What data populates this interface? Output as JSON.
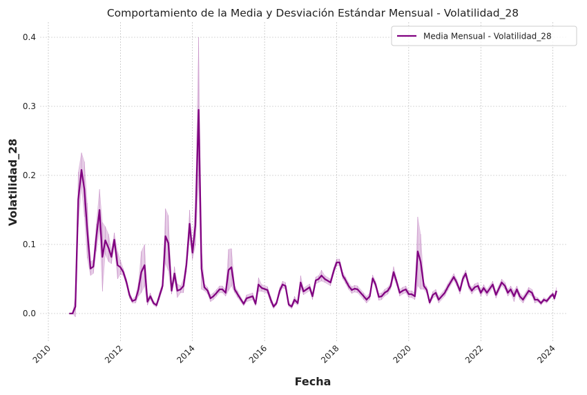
{
  "chart_data": {
    "type": "line",
    "title": "Comportamiento de la Media y Desviación Estándar Mensual - Volatilidad_28",
    "x_label": "Fecha",
    "y_label": "Volatilidad_28",
    "x": [
      2010.58,
      2010.67,
      2010.75,
      2010.83,
      2010.92,
      2011.0,
      2011.08,
      2011.17,
      2011.25,
      2011.33,
      2011.42,
      2011.5,
      2011.58,
      2011.67,
      2011.75,
      2011.83,
      2011.92,
      2012.0,
      2012.08,
      2012.17,
      2012.25,
      2012.33,
      2012.42,
      2012.5,
      2012.58,
      2012.67,
      2012.75,
      2012.83,
      2012.92,
      2013.0,
      2013.08,
      2013.17,
      2013.25,
      2013.33,
      2013.42,
      2013.5,
      2013.58,
      2013.67,
      2013.75,
      2013.83,
      2013.92,
      2014.0,
      2014.08,
      2014.17,
      2014.25,
      2014.33,
      2014.42,
      2014.5,
      2014.58,
      2014.67,
      2014.75,
      2014.83,
      2014.92,
      2015.0,
      2015.08,
      2015.17,
      2015.25,
      2015.42,
      2015.5,
      2015.67,
      2015.75,
      2015.83,
      2015.92,
      2016.08,
      2016.17,
      2016.25,
      2016.33,
      2016.42,
      2016.5,
      2016.58,
      2016.67,
      2016.75,
      2016.83,
      2016.92,
      2017.0,
      2017.08,
      2017.25,
      2017.33,
      2017.42,
      2017.5,
      2017.58,
      2017.67,
      2017.83,
      2017.92,
      2018.0,
      2018.08,
      2018.17,
      2018.25,
      2018.33,
      2018.42,
      2018.5,
      2018.58,
      2018.75,
      2018.83,
      2018.92,
      2019.0,
      2019.08,
      2019.17,
      2019.25,
      2019.33,
      2019.42,
      2019.5,
      2019.58,
      2019.67,
      2019.75,
      2019.83,
      2019.92,
      2020.0,
      2020.08,
      2020.17,
      2020.25,
      2020.33,
      2020.42,
      2020.5,
      2020.58,
      2020.67,
      2020.75,
      2020.83,
      2021.0,
      2021.08,
      2021.25,
      2021.33,
      2021.42,
      2021.5,
      2021.58,
      2021.67,
      2021.75,
      2021.83,
      2021.92,
      2022.0,
      2022.08,
      2022.17,
      2022.33,
      2022.42,
      2022.58,
      2022.67,
      2022.75,
      2022.83,
      2022.92,
      2023.0,
      2023.08,
      2023.17,
      2023.33,
      2023.42,
      2023.5,
      2023.58,
      2023.67,
      2023.75,
      2023.83,
      2023.92,
      2024.0,
      2024.04,
      2024.1
    ],
    "series": [
      {
        "name": "Media Mensual - Volatilidad_28",
        "color": "#800080",
        "values": [
          0,
          0,
          0.01,
          0.165,
          0.208,
          0.18,
          0.12,
          0.065,
          0.068,
          0.11,
          0.15,
          0.082,
          0.106,
          0.095,
          0.082,
          0.107,
          0.07,
          0.067,
          0.06,
          0.045,
          0.027,
          0.018,
          0.02,
          0.035,
          0.06,
          0.07,
          0.017,
          0.025,
          0.015,
          0.012,
          0.025,
          0.04,
          0.112,
          0.102,
          0.033,
          0.058,
          0.033,
          0.035,
          0.04,
          0.07,
          0.13,
          0.088,
          0.128,
          0.295,
          0.065,
          0.038,
          0.033,
          0.022,
          0.025,
          0.03,
          0.035,
          0.035,
          0.03,
          0.063,
          0.067,
          0.035,
          0.028,
          0.014,
          0.022,
          0.025,
          0.014,
          0.042,
          0.037,
          0.034,
          0.02,
          0.01,
          0.015,
          0.033,
          0.042,
          0.04,
          0.013,
          0.01,
          0.02,
          0.015,
          0.045,
          0.032,
          0.038,
          0.025,
          0.048,
          0.05,
          0.055,
          0.05,
          0.045,
          0.062,
          0.074,
          0.074,
          0.055,
          0.048,
          0.04,
          0.034,
          0.036,
          0.035,
          0.025,
          0.02,
          0.025,
          0.051,
          0.042,
          0.024,
          0.025,
          0.03,
          0.033,
          0.04,
          0.06,
          0.045,
          0.03,
          0.033,
          0.035,
          0.028,
          0.028,
          0.025,
          0.09,
          0.075,
          0.04,
          0.034,
          0.016,
          0.027,
          0.03,
          0.02,
          0.03,
          0.038,
          0.053,
          0.045,
          0.033,
          0.05,
          0.058,
          0.04,
          0.033,
          0.038,
          0.04,
          0.03,
          0.037,
          0.03,
          0.042,
          0.027,
          0.045,
          0.04,
          0.03,
          0.035,
          0.025,
          0.035,
          0.025,
          0.02,
          0.033,
          0.03,
          0.02,
          0.02,
          0.015,
          0.02,
          0.018,
          0.024,
          0.028,
          0.022,
          0.033
        ],
        "std": [
          0,
          0,
          0.015,
          0.04,
          0.025,
          0.04,
          0.04,
          0.01,
          0.01,
          0.02,
          0.03,
          0.05,
          0.02,
          0.02,
          0.01,
          0.01,
          0.02,
          0.01,
          0.005,
          0.005,
          0.005,
          0.003,
          0.005,
          0.01,
          0.03,
          0.03,
          0.005,
          0.005,
          0.003,
          0.003,
          0.005,
          0.005,
          0.04,
          0.04,
          0.005,
          0.01,
          0.01,
          0.005,
          0.01,
          0.01,
          0.02,
          0.01,
          0.03,
          0.105,
          0.03,
          0.005,
          0.005,
          0.005,
          0.005,
          0.005,
          0.005,
          0.005,
          0.005,
          0.03,
          0.027,
          0.005,
          0.005,
          0.003,
          0.005,
          0.005,
          0.003,
          0.01,
          0.005,
          0.005,
          0.005,
          0.003,
          0.003,
          0.005,
          0.005,
          0.005,
          0.003,
          0.003,
          0.005,
          0.003,
          0.01,
          0.005,
          0.005,
          0.005,
          0.005,
          0.005,
          0.008,
          0.005,
          0.005,
          0.005,
          0.005,
          0.005,
          0.005,
          0.005,
          0.005,
          0.005,
          0.005,
          0.005,
          0.005,
          0.005,
          0.005,
          0.005,
          0.005,
          0.005,
          0.005,
          0.005,
          0.005,
          0.005,
          0.008,
          0.005,
          0.005,
          0.005,
          0.005,
          0.005,
          0.005,
          0.005,
          0.05,
          0.04,
          0.005,
          0.005,
          0.003,
          0.005,
          0.005,
          0.005,
          0.005,
          0.005,
          0.005,
          0.005,
          0.005,
          0.005,
          0.005,
          0.005,
          0.005,
          0.005,
          0.005,
          0.005,
          0.005,
          0.005,
          0.005,
          0.005,
          0.005,
          0.005,
          0.005,
          0.005,
          0.008,
          0.005,
          0.005,
          0.005,
          0.005,
          0.005,
          0.005,
          0.003,
          0.003,
          0.003,
          0.003,
          0.003,
          0.003,
          0.003,
          0.005
        ]
      }
    ],
    "xlim": [
      2009.77,
      2024.41
    ],
    "xticks": [
      2010,
      2012,
      2014,
      2016,
      2018,
      2020,
      2022,
      2024
    ],
    "ylim": [
      -0.041,
      0.422
    ],
    "yticks": [
      {
        "value": 0,
        "label": "0.0"
      },
      0.1,
      0.2,
      0.3,
      0.4
    ],
    "grid": true,
    "legend": "upper right"
  }
}
